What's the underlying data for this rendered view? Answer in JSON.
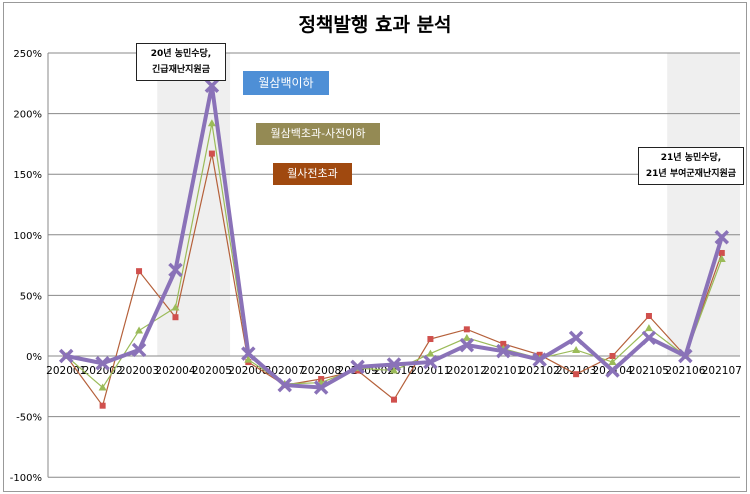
{
  "chart_data": {
    "type": "line",
    "title": "정책발행 효과 분석",
    "categories": [
      "202001",
      "202002",
      "202003",
      "202004",
      "202005",
      "202006",
      "202007",
      "202008",
      "202009",
      "202010",
      "202011",
      "202012",
      "202101",
      "202102",
      "202103",
      "202104",
      "202105",
      "202106",
      "202107"
    ],
    "ylim": [
      -100,
      250
    ],
    "yticks": [
      -100,
      -50,
      0,
      50,
      100,
      150,
      200,
      250
    ],
    "ytick_labels": [
      "-100%",
      "-50%",
      "0%",
      "50%",
      "100%",
      "150%",
      "200%",
      "250%"
    ],
    "grid": true,
    "series": [
      {
        "name": "월사전초과",
        "color": "#b5603a",
        "marker": "#d0504d",
        "values": [
          0,
          -41,
          70,
          32,
          167,
          -5,
          -24,
          -19,
          -12,
          -36,
          14,
          22,
          10,
          1,
          -15,
          0,
          33,
          0,
          85
        ]
      },
      {
        "name": "월삼백초과-사전이하",
        "color": "#9bbb59",
        "marker": "#9bbb59",
        "values": [
          0,
          -26,
          21,
          40,
          192,
          -3,
          -23,
          -22,
          -10,
          -12,
          2,
          15,
          6,
          -2,
          5,
          -5,
          23,
          0,
          80
        ]
      },
      {
        "name": "월삼백이하",
        "color": "#8a72b8",
        "marker": "#8a72b8",
        "values": [
          0,
          -6,
          5,
          71,
          223,
          2,
          -24,
          -26,
          -9,
          -7,
          -5,
          9,
          4,
          -3,
          15,
          -12,
          15,
          0,
          98
        ]
      }
    ],
    "legend_tags": [
      {
        "label": "월삼백이하",
        "color": "#4e8fd6"
      },
      {
        "label": "월삼백초과-사전이하",
        "color": "#948a54"
      },
      {
        "label": "월사전초과",
        "color": "#a0490f"
      }
    ],
    "annotations": [
      {
        "lines": [
          "20년 농민수당,",
          "긴급재난지원금"
        ],
        "span": [
          "202004",
          "202005"
        ]
      },
      {
        "lines": [
          "21년 농민수당,",
          "21년 부여군재난지원금"
        ],
        "span": [
          "202106",
          "202107"
        ]
      }
    ]
  }
}
